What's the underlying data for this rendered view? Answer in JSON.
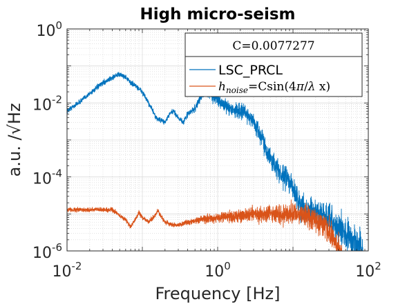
{
  "chart_data": {
    "type": "line",
    "title": "High micro-seism",
    "xlabel": "Frequency [Hz]",
    "ylabel": "a.u. /√Hz",
    "x_scale": "log",
    "y_scale": "log",
    "xlim": [
      0.01,
      100
    ],
    "ylim": [
      1e-06,
      1
    ],
    "x_ticks": [
      {
        "value": 0.01,
        "base": "10",
        "exp": "-2"
      },
      {
        "value": 1,
        "base": "10",
        "exp": "0"
      },
      {
        "value": 100,
        "base": "10",
        "exp": "2"
      }
    ],
    "y_ticks": [
      {
        "value": 1e-06,
        "base": "10",
        "exp": "-6"
      },
      {
        "value": 0.0001,
        "base": "10",
        "exp": "-4"
      },
      {
        "value": 0.01,
        "base": "10",
        "exp": "-2"
      },
      {
        "value": 1,
        "base": "10",
        "exp": "0"
      }
    ],
    "grid": true,
    "minor_grid": true,
    "legend_position": "top-right",
    "legend_header": "C=0.0077277",
    "series": [
      {
        "name": "LSC_PRCL",
        "color": "#0072bd",
        "noise": 0.07,
        "points": [
          [
            0.01,
            0.006
          ],
          [
            0.015,
            0.011
          ],
          [
            0.02,
            0.018
          ],
          [
            0.03,
            0.035
          ],
          [
            0.045,
            0.055
          ],
          [
            0.05,
            0.06
          ],
          [
            0.06,
            0.05
          ],
          [
            0.07,
            0.035
          ],
          [
            0.08,
            0.03
          ],
          [
            0.1,
            0.02
          ],
          [
            0.12,
            0.01
          ],
          [
            0.13,
            0.008
          ],
          [
            0.15,
            0.004
          ],
          [
            0.17,
            0.0035
          ],
          [
            0.2,
            0.003
          ],
          [
            0.23,
            0.005
          ],
          [
            0.26,
            0.006
          ],
          [
            0.3,
            0.004
          ],
          [
            0.35,
            0.003
          ],
          [
            0.4,
            0.005
          ],
          [
            0.5,
            0.007
          ],
          [
            0.6,
            0.015
          ],
          [
            0.7,
            0.02
          ],
          [
            0.8,
            0.017
          ],
          [
            1.0,
            0.012
          ],
          [
            1.2,
            0.009
          ],
          [
            1.5,
            0.007
          ],
          [
            2.0,
            0.006
          ],
          [
            2.5,
            0.005
          ],
          [
            3.0,
            0.003
          ],
          [
            4.0,
            0.001
          ],
          [
            5.0,
            0.0003
          ],
          [
            6.0,
            0.0002
          ],
          [
            7.0,
            0.0001
          ],
          [
            8.0,
            0.0001
          ],
          [
            10.0,
            5e-05
          ],
          [
            12.0,
            2e-05
          ],
          [
            15.0,
            1.2e-05
          ],
          [
            20.0,
            1e-05
          ],
          [
            25.0,
            9e-06
          ],
          [
            30.0,
            7e-06
          ],
          [
            40.0,
            4e-06
          ],
          [
            50.0,
            3e-06
          ],
          [
            60.0,
            2e-06
          ],
          [
            70.0,
            1.5e-06
          ],
          [
            85.0,
            1e-06
          ]
        ]
      },
      {
        "name": "h_noise = Csin(4π/λ x)",
        "color": "#d95319",
        "noise": 0.06,
        "points": [
          [
            0.01,
            1.3e-05
          ],
          [
            0.04,
            1.3e-05
          ],
          [
            0.05,
            9e-06
          ],
          [
            0.06,
            7e-06
          ],
          [
            0.07,
            4.5e-06
          ],
          [
            0.08,
            7e-06
          ],
          [
            0.09,
            1.1e-05
          ],
          [
            0.1,
            8e-06
          ],
          [
            0.12,
            6e-06
          ],
          [
            0.14,
            8e-06
          ],
          [
            0.16,
            1.2e-05
          ],
          [
            0.18,
            8e-06
          ],
          [
            0.2,
            6e-06
          ],
          [
            0.25,
            5e-06
          ],
          [
            0.3,
            5e-06
          ],
          [
            0.4,
            6e-06
          ],
          [
            0.6,
            7e-06
          ],
          [
            1.0,
            8e-06
          ],
          [
            2.0,
            9e-06
          ],
          [
            4.0,
            1e-05
          ],
          [
            8.0,
            1e-05
          ],
          [
            12.0,
            1e-05
          ],
          [
            15.0,
            9e-06
          ],
          [
            20.0,
            7e-06
          ],
          [
            25.0,
            5e-06
          ],
          [
            30.0,
            3e-06
          ],
          [
            35.0,
            2e-06
          ],
          [
            40.0,
            1.3e-06
          ],
          [
            45.0,
            1e-06
          ]
        ]
      }
    ]
  }
}
